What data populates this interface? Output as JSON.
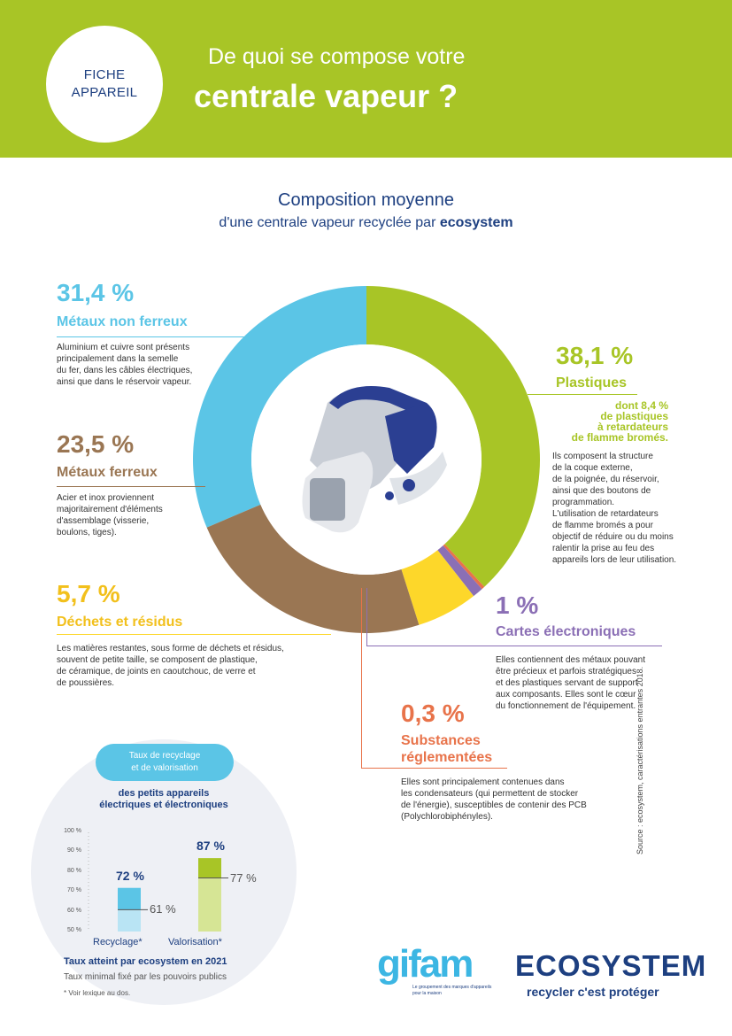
{
  "header": {
    "badge_line1": "FICHE",
    "badge_line2": "APPAREIL",
    "title_line1": "De quoi se compose votre",
    "title_line2": "centrale vapeur ?"
  },
  "composition": {
    "title": "Composition moyenne",
    "subtitle": "d'une centrale vapeur recyclée par",
    "subtitle_brand": "ecosystem"
  },
  "colors": {
    "header_green": "#a8c526",
    "metaux_non_ferreux": "#5bc5e6",
    "plastiques": "#a8c526",
    "metaux_ferreux": "#9a7653",
    "dechets": "#fdd72a",
    "cartes": "#8b6fb5",
    "substances": "#e8734a",
    "navy": "#1d3f80"
  },
  "chart_data": {
    "type": "pie",
    "donut": true,
    "slices": [
      {
        "name": "Métaux non ferreux",
        "value": 31.4
      },
      {
        "name": "Plastiques",
        "value": 38.1
      },
      {
        "name": "Substances réglementées",
        "value": 0.3
      },
      {
        "name": "Cartes électroniques",
        "value": 1
      },
      {
        "name": "Déchets et résidus",
        "value": 5.7
      },
      {
        "name": "Métaux ferreux",
        "value": 23.5
      }
    ]
  },
  "segments": {
    "mnf": {
      "pct": "31,4 %",
      "label": "Métaux non ferreux",
      "desc": [
        "Aluminium et cuivre sont présents",
        "principalement dans la semelle",
        "du fer, dans les câbles électriques,",
        "ainsi que dans le réservoir vapeur."
      ]
    },
    "mf": {
      "pct": "23,5 %",
      "label": "Métaux ferreux",
      "desc": [
        "Acier et inox proviennent",
        "majoritairement d'éléments",
        "d'assemblage (visserie,",
        "boulons, tiges)."
      ]
    },
    "dechets": {
      "pct": "5,7 %",
      "label": "Déchets et résidus",
      "desc": [
        "Les matières restantes, sous forme de déchets et résidus,",
        "souvent de petite taille, se composent de plastique,",
        "de céramique, de joints en caoutchouc, de verre et",
        "de poussières."
      ]
    },
    "plastiques": {
      "pct": "38,1 %",
      "label": "Plastiques",
      "highlight": [
        "dont 8,4 %",
        "de plastiques",
        "à retardateurs",
        "de flamme bromés."
      ],
      "desc": [
        "Ils composent la structure",
        "de la coque externe,",
        "de la poignée, du réservoir,",
        "ainsi que des boutons de",
        "programmation.",
        "L'utilisation de retardateurs",
        "de flamme bromés a pour",
        "objectif de réduire ou du moins",
        "ralentir la prise au feu des",
        "appareils lors de leur utilisation."
      ]
    },
    "cartes": {
      "pct": "1 %",
      "label": "Cartes électroniques",
      "desc": [
        "Elles contiennent des métaux pouvant",
        "être précieux et parfois stratégiques",
        "et des plastiques servant de support",
        "aux composants. Elles sont le cœur",
        "du fonctionnement de l'équipement."
      ]
    },
    "substances": {
      "pct": "0,3 %",
      "label_line1": "Substances",
      "label_line2": "réglementées",
      "desc": [
        "Elles sont principalement contenues dans",
        "les condensateurs (qui permettent de stocker",
        "de l'énergie), susceptibles de contenir des PCB",
        "(Polychlorobiphényles)."
      ]
    }
  },
  "source": "Source : ecosystem, caractérisations entrantes 2018.",
  "recycling": {
    "pill_line1": "Taux de recyclage",
    "pill_line2": "et de valorisation",
    "sub_line1": "des petits appareils",
    "sub_line2": "électriques et électroniques",
    "ticks": [
      "100 %",
      "90 %",
      "80 %",
      "70 %",
      "60 %",
      "50 %"
    ],
    "bars": [
      {
        "label": "Recyclage*",
        "value": 72,
        "value_label": "72 %",
        "minimum": 61,
        "minimum_label": "61 %"
      },
      {
        "label": "Valorisation*",
        "value": 87,
        "value_label": "87 %",
        "minimum": 77,
        "minimum_label": "77 %"
      }
    ],
    "note_reached": "Taux atteint par ecosystem en 2021",
    "note_minimum": "Taux minimal fixé par les pouvoirs publics",
    "note_lexique": "* Voir lexique au dos."
  },
  "logos": {
    "gifam": "gifam",
    "gifam_tagline": "Le groupement des marques d'appareils pour la maison",
    "ecosystem": "ECOSYSTEM",
    "ecosystem_tagline": "recycler c'est protéger"
  }
}
